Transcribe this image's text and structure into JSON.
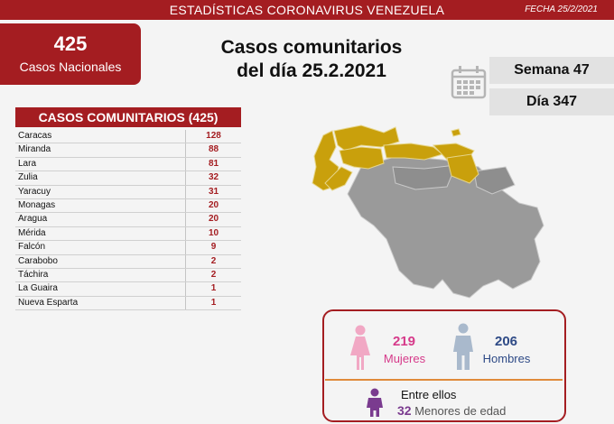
{
  "header": {
    "title": "ESTADÍSTICAS CORONAVIRUS VENEZUELA",
    "date": "FECHA 25/2/2021"
  },
  "national": {
    "count": "425",
    "label": "Casos Nacionales"
  },
  "headline": {
    "line1": "Casos comunitarios",
    "line2": "del día 25.2.2021"
  },
  "week": "Semana 47",
  "day": "Día 347",
  "table": {
    "title": "CASOS COMUNITARIOS (425)",
    "rows": [
      {
        "state": "Caracas",
        "cases": "128"
      },
      {
        "state": "Miranda",
        "cases": "88"
      },
      {
        "state": "Lara",
        "cases": "81"
      },
      {
        "state": "Zulia",
        "cases": "32"
      },
      {
        "state": "Yaracuy",
        "cases": "31"
      },
      {
        "state": "Monagas",
        "cases": "20"
      },
      {
        "state": "Aragua",
        "cases": "20"
      },
      {
        "state": "Mérida",
        "cases": "10"
      },
      {
        "state": "Falcón",
        "cases": "9"
      },
      {
        "state": "Carabobo",
        "cases": "2"
      },
      {
        "state": "Táchira",
        "cases": "2"
      },
      {
        "state": "La Guaira",
        "cases": "1"
      },
      {
        "state": "Nueva Esparta",
        "cases": "1"
      }
    ]
  },
  "gender": {
    "women": {
      "count": "219",
      "label": "Mujeres"
    },
    "men": {
      "count": "206",
      "label": "Hombres"
    },
    "among": "Entre ellos",
    "minors": {
      "count": "32",
      "label": "Menores de edad"
    }
  },
  "colors": {
    "brand_red": "#a41d21",
    "affected": "#c9a00c",
    "unaffected": "#9a9a9a",
    "women": "#d63a8a",
    "men": "#2e4a86"
  }
}
